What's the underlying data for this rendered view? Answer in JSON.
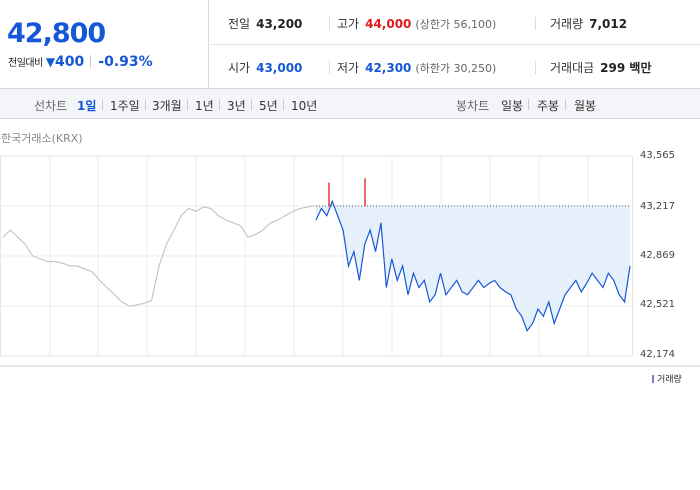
{
  "quote": {
    "price": "42,800",
    "change_label": "전일대비",
    "change_arrow": "▼",
    "change_amount": "400",
    "change_rate": "-0.93%"
  },
  "stats": {
    "prev_close_label": "전일",
    "prev_close": "43,200",
    "high_label": "고가",
    "high": "44,000",
    "upper_limit": "(상한가 56,100)",
    "volume_label": "거래량",
    "volume": "7,012",
    "open_label": "시가",
    "open": "43,000",
    "low_label": "저가",
    "low": "42,300",
    "lower_limit": "(하한가 30,250)",
    "trade_value_label": "거래대금",
    "trade_value": "299 백만"
  },
  "period_tabs": {
    "group_label": "선차트",
    "items": [
      "1일",
      "1주일",
      "3개월",
      "1년",
      "3년",
      "5년",
      "10년"
    ],
    "active": "1일"
  },
  "candle_tabs": {
    "group_label": "봉차트",
    "items": [
      "일봉",
      "주봉",
      "월봉"
    ]
  },
  "source_label": "한국거래소(KRX)",
  "volume_legend": "거래량",
  "colors": {
    "up": "#e3191a",
    "down": "#1558d6",
    "fill": "#e6f0fb",
    "gray": "#bdbdbd",
    "volume": "#8f6fd3"
  },
  "chart_data": {
    "type": "line",
    "y_ticks": [
      "43,565",
      "43,217",
      "42,869",
      "42,521",
      "42,174"
    ],
    "ylim": [
      42174,
      43565
    ],
    "reference_line": 43217,
    "prev_day_series": [
      43000,
      43050,
      43000,
      42950,
      42870,
      42850,
      42830,
      42830,
      42820,
      42800,
      42800,
      42780,
      42760,
      42700,
      42650,
      42600,
      42550,
      42520,
      42530,
      42540,
      42560,
      42800,
      42950,
      43050,
      43150,
      43200,
      43180,
      43210,
      43200,
      43150,
      43120,
      43100,
      43080,
      43000,
      43020,
      43050,
      43100,
      43120,
      43150,
      43180,
      43200,
      43210,
      43220
    ],
    "today_series": [
      43120,
      43200,
      43150,
      43250,
      43150,
      43050,
      42800,
      42900,
      42700,
      42950,
      43050,
      42900,
      43100,
      42650,
      42850,
      42700,
      42800,
      42600,
      42750,
      42650,
      42700,
      42550,
      42600,
      42750,
      42600,
      42650,
      42700,
      42620,
      42600,
      42650,
      42700,
      42650,
      42680,
      42700,
      42650,
      42620,
      42600,
      42500,
      42450,
      42350,
      42400,
      42500,
      42450,
      42550,
      42400,
      42500,
      42600,
      42650,
      42700,
      42620,
      42680,
      42750,
      42700,
      42650,
      42750,
      42700,
      42600,
      42550,
      42800
    ],
    "spikes": [
      43380,
      43410
    ]
  }
}
